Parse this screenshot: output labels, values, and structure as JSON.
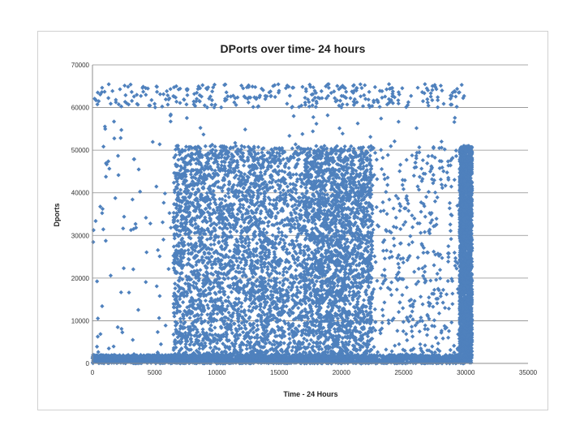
{
  "chart_data": {
    "type": "scatter",
    "title": "DPorts over time- 24 hours",
    "xlabel": "Time - 24 Hours",
    "ylabel": "Dports",
    "xlim": [
      0,
      35000
    ],
    "ylim": [
      0,
      70000
    ],
    "xticks": [
      0,
      5000,
      10000,
      15000,
      20000,
      25000,
      30000,
      35000
    ],
    "yticks": [
      0,
      10000,
      20000,
      30000,
      40000,
      50000,
      60000,
      70000
    ],
    "xtick_labels": [
      "0",
      "5000",
      "10000",
      "15000",
      "20000",
      "25000",
      "30000",
      "35000"
    ],
    "ytick_labels": [
      "0",
      "10000",
      "20000",
      "30000",
      "40000",
      "50000",
      "60000",
      "70000"
    ],
    "horizontal_gridlines": true,
    "legend": "none",
    "marker": "diamond",
    "color": "#4f81bd",
    "series": [
      {
        "distribution": [
          {
            "x_range": [
              0,
              30000
            ],
            "y_range": [
              60000,
              65500
            ],
            "density": "medium"
          },
          {
            "x_range": [
              0,
              30000
            ],
            "y_range": [
              0,
              60000
            ],
            "density": "sparse"
          },
          {
            "x_range": [
              6500,
              14000
            ],
            "y_range": [
              0,
              51000
            ],
            "density": "very dense"
          },
          {
            "x_range": [
              14000,
              17000
            ],
            "y_range": [
              0,
              51000
            ],
            "density": "dense"
          },
          {
            "x_range": [
              17000,
              22500
            ],
            "y_range": [
              0,
              51000
            ],
            "density": "very dense"
          },
          {
            "x_range": [
              22500,
              29500
            ],
            "y_range": [
              0,
              51000
            ],
            "density": "medium"
          },
          {
            "x_range": [
              29500,
              30500
            ],
            "y_range": [
              0,
              51000
            ],
            "density": "very dense"
          },
          {
            "x_range": [
              0,
              30000
            ],
            "y_range": [
              0,
              2000
            ],
            "density": "very dense"
          }
        ]
      }
    ]
  }
}
